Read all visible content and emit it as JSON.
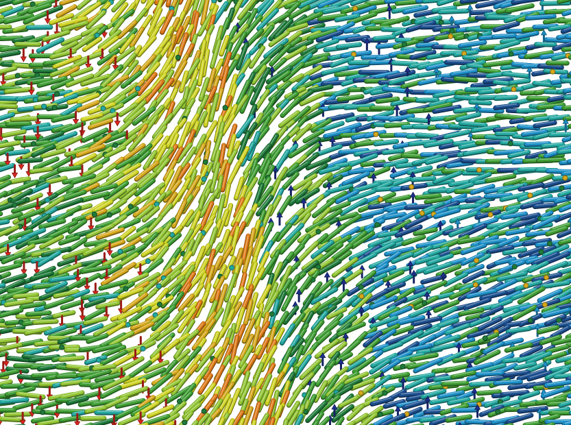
{
  "background": "#ffffff",
  "colors": {
    "red": "#d8261e",
    "orange": "#de7a18",
    "gold": "#d6a81c",
    "yellow": "#cfd424",
    "yellow_green": "#93c634",
    "green": "#3f9e34",
    "dark_green": "#1f7a3a",
    "teal": "#23a8a0",
    "cyan": "#1e90c8",
    "navy": "#1d2f8c",
    "dark_blue": "#1c4f8f"
  },
  "glyphs": [
    "rod",
    "arrow",
    "sphere"
  ]
}
